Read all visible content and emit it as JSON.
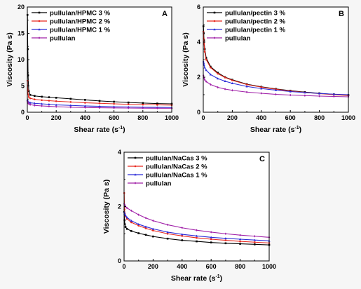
{
  "chart_data": [
    {
      "type": "line",
      "panel_label": "A",
      "xlabel": "Shear rate (s",
      "xlabel_sup": "-1",
      "xlabel_tail": ")",
      "ylabel": "Viscosity (Pa s)",
      "xlim": [
        0,
        1000
      ],
      "ylim": [
        0,
        20
      ],
      "xticks": [
        0,
        200,
        400,
        600,
        800,
        1000
      ],
      "yticks": [
        0,
        5,
        10,
        15,
        20
      ],
      "legend_position": "top-left",
      "series": [
        {
          "name": "pullulan/HPMC 3 %",
          "color": "#000000",
          "x": [
            1,
            3,
            5,
            10,
            20,
            50,
            100,
            150,
            200,
            300,
            400,
            500,
            600,
            700,
            800,
            900,
            1000
          ],
          "y": [
            18.5,
            12,
            7,
            4,
            3.3,
            3.1,
            2.95,
            2.85,
            2.75,
            2.55,
            2.35,
            2.15,
            2.0,
            1.85,
            1.75,
            1.65,
            1.6
          ]
        },
        {
          "name": "pullulan/HPMC 2 %",
          "color": "#e8281e",
          "x": [
            1,
            3,
            5,
            10,
            20,
            50,
            100,
            150,
            200,
            300,
            400,
            500,
            600,
            700,
            800,
            900,
            1000
          ],
          "y": [
            6,
            4.2,
            3.4,
            2.9,
            2.65,
            2.45,
            2.3,
            2.2,
            2.1,
            1.95,
            1.8,
            1.7,
            1.6,
            1.5,
            1.45,
            1.4,
            1.35
          ]
        },
        {
          "name": "pullulan/HPMC 1 %",
          "color": "#2b2bd8",
          "x": [
            1,
            3,
            5,
            10,
            20,
            50,
            100,
            150,
            200,
            300,
            400,
            500,
            600,
            700,
            800,
            900,
            1000
          ],
          "y": [
            2.3,
            2.1,
            2.0,
            1.9,
            1.8,
            1.7,
            1.6,
            1.5,
            1.4,
            1.3,
            1.2,
            1.12,
            1.05,
            1.0,
            0.95,
            0.92,
            0.9
          ]
        },
        {
          "name": "pullulan",
          "color": "#a020a8",
          "x": [
            1,
            3,
            5,
            10,
            20,
            50,
            100,
            150,
            200,
            300,
            400,
            500,
            600,
            700,
            800,
            900,
            1000
          ],
          "y": [
            2.1,
            1.9,
            1.75,
            1.6,
            1.45,
            1.3,
            1.2,
            1.12,
            1.05,
            0.95,
            0.9,
            0.85,
            0.82,
            0.8,
            0.78,
            0.76,
            0.75
          ]
        }
      ]
    },
    {
      "type": "line",
      "panel_label": "B",
      "xlabel": "Shear rate (s",
      "xlabel_sup": "-1",
      "xlabel_tail": ")",
      "ylabel": "Viscosity (Pa s)",
      "xlim": [
        0,
        1000
      ],
      "ylim": [
        0,
        6
      ],
      "xticks": [
        0,
        200,
        400,
        600,
        800,
        1000
      ],
      "yticks": [
        0,
        2,
        4,
        6
      ],
      "legend_position": "top-left",
      "series": [
        {
          "name": "pullulan/pectin 3 %",
          "color": "#000000",
          "x": [
            1,
            3,
            5,
            10,
            20,
            50,
            100,
            150,
            200,
            300,
            400,
            500,
            600,
            700,
            800,
            900,
            1000
          ],
          "y": [
            4.9,
            4.5,
            4.1,
            3.6,
            3.1,
            2.6,
            2.25,
            2.0,
            1.85,
            1.6,
            1.45,
            1.33,
            1.23,
            1.15,
            1.08,
            1.02,
            0.98
          ]
        },
        {
          "name": "pullulan/pectin 2 %",
          "color": "#e8281e",
          "x": [
            1,
            3,
            5,
            10,
            20,
            50,
            100,
            150,
            200,
            300,
            400,
            500,
            600,
            700,
            800,
            900,
            1000
          ],
          "y": [
            4.6,
            4.2,
            3.9,
            3.45,
            3.0,
            2.55,
            2.2,
            1.98,
            1.82,
            1.58,
            1.43,
            1.31,
            1.21,
            1.13,
            1.06,
            1.0,
            0.95
          ]
        },
        {
          "name": "pullulan/pectin 1 %",
          "color": "#2b2bd8",
          "x": [
            1,
            3,
            5,
            10,
            20,
            50,
            100,
            150,
            200,
            300,
            400,
            500,
            600,
            700,
            800,
            900,
            1000
          ],
          "y": [
            2.9,
            2.8,
            2.7,
            2.55,
            2.4,
            2.15,
            1.92,
            1.77,
            1.65,
            1.47,
            1.35,
            1.26,
            1.18,
            1.12,
            1.07,
            1.03,
            1.0
          ]
        },
        {
          "name": "pullulan",
          "color": "#a020a8",
          "x": [
            1,
            3,
            5,
            10,
            20,
            50,
            100,
            150,
            200,
            300,
            400,
            500,
            600,
            700,
            800,
            900,
            1000
          ],
          "y": [
            2.1,
            2.0,
            1.95,
            1.85,
            1.75,
            1.58,
            1.42,
            1.32,
            1.25,
            1.15,
            1.08,
            1.02,
            0.98,
            0.95,
            0.92,
            0.9,
            0.88
          ]
        }
      ]
    },
    {
      "type": "line",
      "panel_label": "C",
      "xlabel": "Shear rate (s",
      "xlabel_sup": "-1",
      "xlabel_tail": ")",
      "ylabel": "Viscosity (Pa s)",
      "xlim": [
        0,
        1000
      ],
      "ylim": [
        0,
        4
      ],
      "xticks": [
        0,
        200,
        400,
        600,
        800,
        1000
      ],
      "yticks": [
        0,
        2,
        4
      ],
      "legend_position": "top-left",
      "series": [
        {
          "name": "pullulan/NaCas 3 %",
          "color": "#000000",
          "x": [
            1,
            3,
            5,
            10,
            20,
            50,
            100,
            150,
            200,
            300,
            400,
            500,
            600,
            700,
            800,
            900,
            1000
          ],
          "y": [
            1.8,
            1.5,
            1.35,
            1.25,
            1.18,
            1.1,
            1.02,
            0.96,
            0.9,
            0.82,
            0.76,
            0.72,
            0.68,
            0.65,
            0.63,
            0.61,
            0.59
          ]
        },
        {
          "name": "pullulan/NaCas 2 %",
          "color": "#e8281e",
          "x": [
            1,
            3,
            5,
            10,
            20,
            50,
            100,
            150,
            200,
            300,
            400,
            500,
            600,
            700,
            800,
            900,
            1000
          ],
          "y": [
            2.5,
            1.9,
            1.75,
            1.65,
            1.55,
            1.42,
            1.3,
            1.2,
            1.12,
            1.0,
            0.92,
            0.85,
            0.8,
            0.76,
            0.72,
            0.69,
            0.66
          ]
        },
        {
          "name": "pullulan/NaCas 1 %",
          "color": "#2b2bd8",
          "x": [
            1,
            3,
            5,
            10,
            20,
            50,
            100,
            150,
            200,
            300,
            400,
            500,
            600,
            700,
            800,
            900,
            1000
          ],
          "y": [
            1.8,
            1.75,
            1.72,
            1.68,
            1.6,
            1.48,
            1.35,
            1.26,
            1.18,
            1.06,
            0.98,
            0.92,
            0.87,
            0.83,
            0.8,
            0.77,
            0.74
          ]
        },
        {
          "name": "pullulan",
          "color": "#a020a8",
          "x": [
            1,
            3,
            5,
            10,
            20,
            50,
            100,
            150,
            200,
            300,
            400,
            500,
            600,
            700,
            800,
            900,
            1000
          ],
          "y": [
            2.1,
            2.08,
            2.05,
            2.0,
            1.95,
            1.85,
            1.7,
            1.58,
            1.48,
            1.33,
            1.22,
            1.13,
            1.06,
            1.0,
            0.95,
            0.91,
            0.87
          ]
        }
      ]
    }
  ]
}
